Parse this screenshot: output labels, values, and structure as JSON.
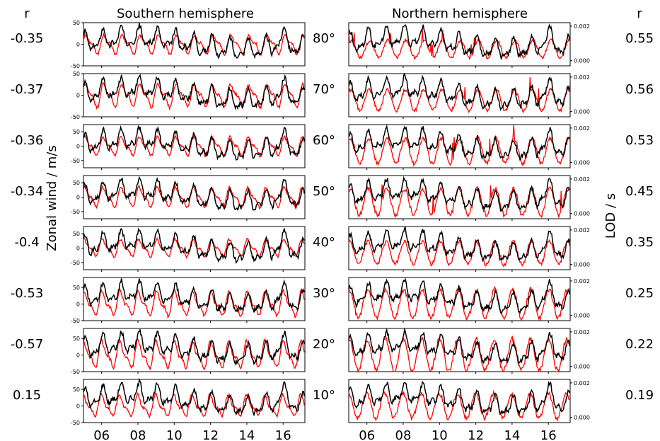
{
  "figure": {
    "left_title": "Southern hemisphere",
    "right_title": "Northern hemisphere",
    "left_r_header": "r",
    "right_r_header": "r",
    "left_ylabel": "Zonal wind / m/s",
    "right_ylabel": "LOD / s",
    "colors": {
      "zonal_wind": "#ff0000",
      "lod": "#000000"
    }
  },
  "chart_data": {
    "type": "line",
    "x_tick_labels": [
      "06",
      "08",
      "10",
      "12",
      "14",
      "16"
    ],
    "x_ticks": [
      2006,
      2008,
      2010,
      2012,
      2014,
      2016
    ],
    "xlim": [
      2005,
      2017.2
    ],
    "rows": [
      {
        "latitude_label": "80°",
        "south": {
          "r": "-0.35",
          "yticks": [
            "50",
            "0",
            "-50"
          ],
          "ylim": [
            -50,
            50
          ]
        },
        "north": {
          "r": "0.55",
          "yticks": [
            "0.002",
            "0.000"
          ],
          "lod_range": [
            -0.0003,
            0.0022
          ]
        }
      },
      {
        "latitude_label": "70°",
        "south": {
          "r": "-0.37",
          "yticks": [
            "50",
            "0",
            "-50"
          ],
          "ylim": [
            -50,
            50
          ]
        },
        "north": {
          "r": "0.56",
          "yticks": [
            "0.002",
            "0.000"
          ],
          "lod_range": [
            -0.0003,
            0.0022
          ]
        }
      },
      {
        "latitude_label": "60°",
        "south": {
          "r": "-0.36",
          "yticks": [
            "50",
            "0",
            "-50"
          ],
          "ylim": [
            -75,
            75
          ]
        },
        "north": {
          "r": "0.53",
          "yticks": [
            "0.002",
            "0.000"
          ],
          "lod_range": [
            -0.0003,
            0.0022
          ]
        }
      },
      {
        "latitude_label": "50°",
        "south": {
          "r": "-0.34",
          "yticks": [
            "50",
            "0",
            "-50"
          ],
          "ylim": [
            -75,
            75
          ]
        },
        "north": {
          "r": "0.45",
          "yticks": [
            "0.002",
            "0.000"
          ],
          "lod_range": [
            -0.0003,
            0.0022
          ]
        }
      },
      {
        "latitude_label": "40°",
        "south": {
          "r": "-0.4",
          "yticks": [
            "50",
            "0",
            "-50"
          ],
          "ylim": [
            -75,
            75
          ]
        },
        "north": {
          "r": "0.35",
          "yticks": [
            "0.002",
            "0.000"
          ],
          "lod_range": [
            -0.0003,
            0.0022
          ]
        }
      },
      {
        "latitude_label": "30°",
        "south": {
          "r": "-0.53",
          "yticks": [
            "50",
            "0",
            "-50"
          ],
          "ylim": [
            -50,
            80
          ]
        },
        "north": {
          "r": "0.25",
          "yticks": [
            "0.002",
            "0.000"
          ],
          "lod_range": [
            -0.0003,
            0.0022
          ]
        }
      },
      {
        "latitude_label": "20°",
        "south": {
          "r": "-0.57",
          "yticks": [
            "50",
            "0",
            "-50"
          ],
          "ylim": [
            -50,
            80
          ]
        },
        "north": {
          "r": "0.22",
          "yticks": [
            "0.002",
            "0.000"
          ],
          "lod_range": [
            -0.0003,
            0.0022
          ]
        }
      },
      {
        "latitude_label": "10°",
        "south": {
          "r": "0.15",
          "yticks": [
            "50",
            "0",
            "-50"
          ],
          "ylim": [
            -50,
            80
          ]
        },
        "north": {
          "r": "0.19",
          "yticks": [
            "0.002",
            "0.000"
          ],
          "lod_range": [
            -0.0003,
            0.0022
          ]
        }
      }
    ]
  }
}
